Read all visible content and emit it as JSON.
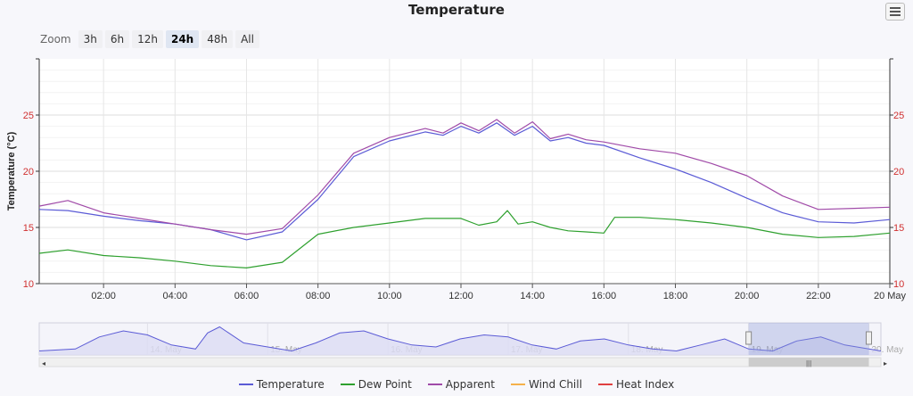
{
  "title": "Temperature",
  "zoom": {
    "label": "Zoom",
    "buttons": [
      "3h",
      "6h",
      "12h",
      "24h",
      "48h",
      "All"
    ],
    "active": "24h"
  },
  "chart_data": {
    "type": "line",
    "title": "Temperature",
    "ylabel": "Temperature (°C)",
    "xlabel": "",
    "x_unit": "hour",
    "xlim": [
      0.2,
      24
    ],
    "ylim": [
      10,
      30
    ],
    "y_ticks": [
      10,
      15,
      20,
      25
    ],
    "x_ticks": [
      "02:00",
      "04:00",
      "06:00",
      "08:00",
      "10:00",
      "12:00",
      "14:00",
      "16:00",
      "18:00",
      "20:00",
      "22:00",
      "20 May"
    ],
    "x_tick_values": [
      2,
      4,
      6,
      8,
      10,
      12,
      14,
      16,
      18,
      20,
      22,
      24
    ],
    "grid": true,
    "legend_placement": "bottom-center",
    "series": [
      {
        "name": "Temperature",
        "color": "#5b5bd6",
        "x": [
          0.2,
          1,
          2,
          3,
          4,
          5,
          6,
          7,
          8,
          9,
          10,
          11,
          11.5,
          12,
          12.5,
          13,
          13.5,
          14,
          14.5,
          15,
          15.5,
          16,
          17,
          18,
          19,
          20,
          21,
          22,
          23,
          24
        ],
        "values": [
          16.6,
          16.5,
          16.0,
          15.6,
          15.3,
          14.8,
          13.9,
          14.6,
          17.5,
          21.3,
          22.7,
          23.5,
          23.2,
          24.0,
          23.4,
          24.3,
          23.2,
          24.0,
          22.7,
          23.0,
          22.5,
          22.3,
          21.2,
          20.2,
          19.0,
          17.6,
          16.3,
          15.5,
          15.4,
          15.7
        ]
      },
      {
        "name": "Dew Point",
        "color": "#2ea02e",
        "x": [
          0.2,
          1,
          2,
          3,
          4,
          5,
          6,
          7,
          8,
          9,
          10,
          11,
          12,
          12.5,
          13,
          13.3,
          13.6,
          14,
          14.5,
          15,
          15.5,
          16,
          16.3,
          17,
          18,
          19,
          20,
          21,
          22,
          23,
          24
        ],
        "values": [
          12.7,
          13.0,
          12.5,
          12.3,
          12.0,
          11.6,
          11.4,
          11.9,
          14.4,
          15.0,
          15.4,
          15.8,
          15.8,
          15.2,
          15.5,
          16.5,
          15.3,
          15.5,
          15.0,
          14.7,
          14.6,
          14.5,
          15.9,
          15.9,
          15.7,
          15.4,
          15.0,
          14.4,
          14.1,
          14.2,
          14.5
        ]
      },
      {
        "name": "Apparent",
        "color": "#a04aa8",
        "x": [
          0.2,
          1,
          2,
          3,
          4,
          5,
          6,
          7,
          8,
          9,
          10,
          11,
          11.5,
          12,
          12.5,
          13,
          13.5,
          14,
          14.5,
          15,
          15.5,
          16,
          17,
          18,
          19,
          20,
          21,
          22,
          23,
          24
        ],
        "values": [
          16.9,
          17.4,
          16.3,
          15.8,
          15.3,
          14.8,
          14.4,
          14.9,
          17.9,
          21.6,
          23.0,
          23.8,
          23.4,
          24.3,
          23.6,
          24.6,
          23.4,
          24.4,
          22.9,
          23.3,
          22.8,
          22.6,
          22.0,
          21.6,
          20.7,
          19.6,
          17.8,
          16.6,
          16.7,
          16.8
        ]
      },
      {
        "name": "Wind Chill",
        "color": "#f5b14a",
        "x": [],
        "values": []
      },
      {
        "name": "Heat Index",
        "color": "#e04040",
        "x": [],
        "values": []
      }
    ],
    "navigator": {
      "labels": [
        "14. May",
        "15. May",
        "16. May",
        "17. May",
        "18. May",
        "19. May",
        "20. May"
      ],
      "day_values": [
        14,
        15,
        16,
        17,
        18,
        19,
        20
      ],
      "x_range": [
        13.1,
        20.1
      ],
      "selection": [
        19.0,
        20.0
      ],
      "series_x": [
        13.1,
        13.4,
        13.6,
        13.8,
        14.0,
        14.2,
        14.4,
        14.5,
        14.6,
        14.8,
        15.0,
        15.2,
        15.4,
        15.6,
        15.8,
        16.0,
        16.2,
        16.4,
        16.6,
        16.8,
        17.0,
        17.2,
        17.4,
        17.6,
        17.8,
        18.0,
        18.2,
        18.4,
        18.6,
        18.8,
        19.0,
        19.2,
        19.4,
        19.6,
        19.8,
        20.0,
        20.1
      ],
      "series_values": [
        12,
        13,
        19,
        22,
        20,
        15,
        13,
        21,
        24,
        16,
        14,
        12,
        16,
        21,
        22,
        18,
        15,
        14,
        18,
        20,
        19,
        15,
        13,
        17,
        18,
        15,
        13,
        12,
        15,
        18,
        13,
        12,
        17,
        19,
        15,
        13,
        12
      ]
    }
  }
}
